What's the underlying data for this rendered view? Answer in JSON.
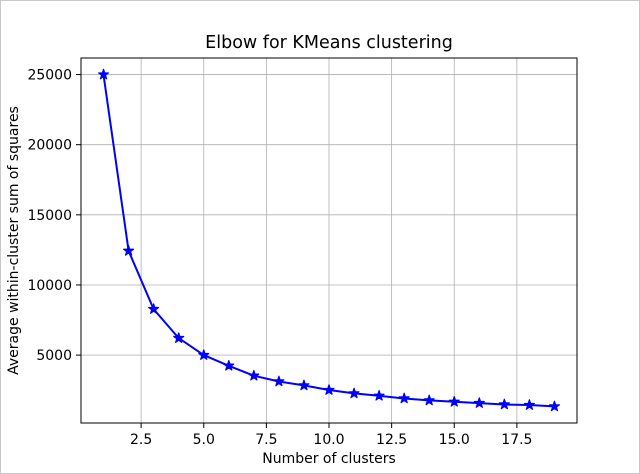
{
  "figure": {
    "background": "#ffffff",
    "border_color": "#c9c9c9"
  },
  "chart_data": {
    "type": "line",
    "title": "Elbow for KMeans clustering",
    "xlabel": "Number of clusters",
    "ylabel": "Average within-cluster sum of squares",
    "x": [
      1,
      2,
      3,
      4,
      5,
      6,
      7,
      8,
      9,
      10,
      11,
      12,
      13,
      14,
      15,
      16,
      17,
      18,
      19
    ],
    "y": [
      25000,
      12430,
      8280,
      6210,
      5000,
      4240,
      3530,
      3120,
      2840,
      2510,
      2270,
      2100,
      1910,
      1770,
      1670,
      1580,
      1480,
      1440,
      1340
    ],
    "xlim": [
      0.1,
      19.9
    ],
    "ylim": [
      160,
      26180
    ],
    "xticks": [
      2.5,
      5.0,
      7.5,
      10.0,
      12.5,
      15.0,
      17.5
    ],
    "xtick_labels": [
      "2.5",
      "5.0",
      "7.5",
      "10.0",
      "12.5",
      "15.0",
      "17.5"
    ],
    "yticks": [
      5000,
      10000,
      15000,
      20000,
      25000
    ],
    "ytick_labels": [
      "5000",
      "10000",
      "15000",
      "20000",
      "25000"
    ],
    "grid": true,
    "grid_color": "#b0b0b0",
    "line_color": "#0000ff",
    "marker": "star",
    "spine_color": "#000000",
    "legend": null
  }
}
